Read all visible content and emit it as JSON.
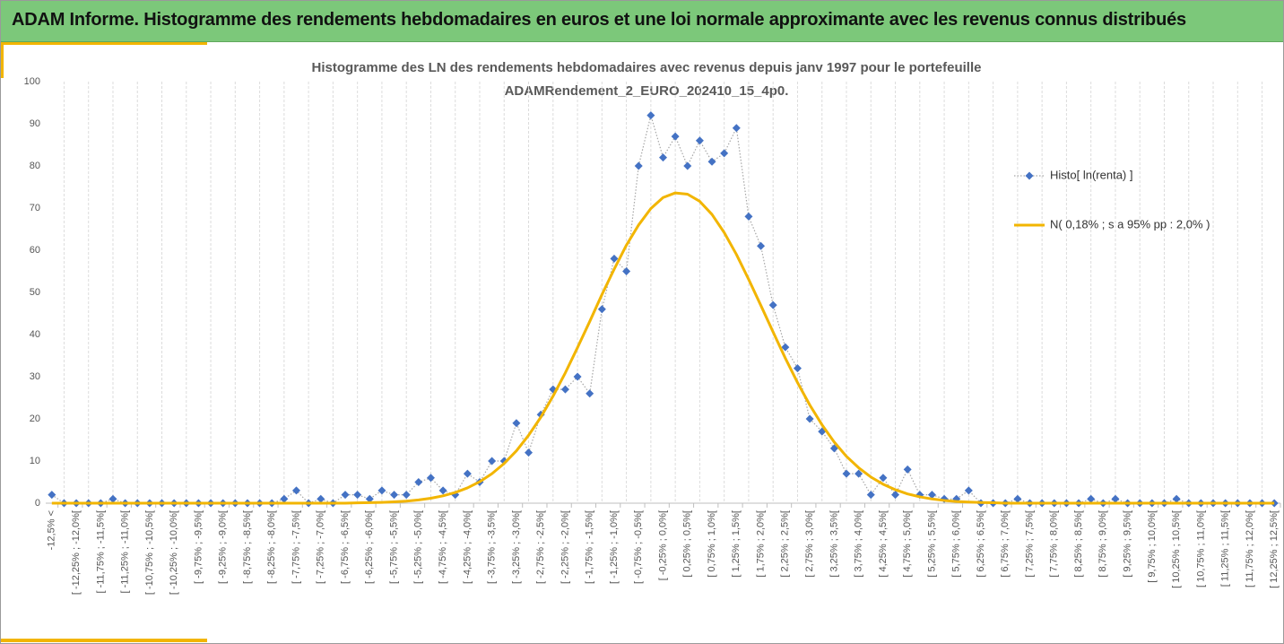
{
  "header": "ADAM Informe. Histogramme des rendements hebdomadaires en euros et une loi normale approximante avec les revenus connus distribués",
  "chart_data": {
    "type": "line",
    "title": [
      "Histogramme des LN des rendements hebdomadaires avec revenus depuis janv 1997 pour le portefeuille",
      "ADAMRendement_2_EURO_202410_15_4p0."
    ],
    "categories": [
      "-12,5% <",
      null,
      "[ -12,25% ; -12,0%[",
      null,
      "[ -11,75% ; -11,5%[",
      null,
      "[ -11,25% ; -11,0%[",
      null,
      "[ -10,75% ; -10,5%[",
      null,
      "[ -10,25% ; -10,0%[",
      null,
      "[ -9,75% ; -9,5%[",
      null,
      "[ -9,25% ; -9,0%[",
      null,
      "[ -8,75% ; -8,5%[",
      null,
      "[ -8,25% ; -8,0%[",
      null,
      "[ -7,75% ; -7,5%[",
      null,
      "[ -7,25% ; -7,0%[",
      null,
      "[ -6,75% ; -6,5%[",
      null,
      "[ -6,25% ; -6,0%[",
      null,
      "[ -5,75% ; -5,5%[",
      null,
      "[ -5,25% ; -5,0%[",
      null,
      "[ -4,75% ; -4,5%[",
      null,
      "[ -4,25% ; -4,0%[",
      null,
      "[ -3,75% ; -3,5%[",
      null,
      "[ -3,25% ; -3,0%[",
      null,
      "[ -2,75% ; -2,5%[",
      null,
      "[ -2,25% ; -2,0%[",
      null,
      "[ -1,75% ; -1,5%[",
      null,
      "[ -1,25% ; -1,0%[",
      null,
      "[ -0,75% ; -0,5%[",
      null,
      "[ -0,25% ; 0,0%[",
      null,
      "[ 0,25% ; 0,5%[",
      null,
      "[ 0,75% ; 1,0%[",
      null,
      "[ 1,25% ; 1,5%[",
      null,
      "[ 1,75% ; 2,0%[",
      null,
      "[ 2,25% ; 2,5%[",
      null,
      "[ 2,75% ; 3,0%[",
      null,
      "[ 3,25% ; 3,5%[",
      null,
      "[ 3,75% ; 4,0%[",
      null,
      "[ 4,25% ; 4,5%[",
      null,
      "[ 4,75% ; 5,0%[",
      null,
      "[ 5,25% ; 5,5%[",
      null,
      "[ 5,75% ; 6,0%[",
      null,
      "[ 6,25% ; 6,5%[",
      null,
      "[ 6,75% ; 7,0%[",
      null,
      "[ 7,25% ; 7,5%[",
      null,
      "[ 7,75% ; 8,0%[",
      null,
      "[ 8,25% ; 8,5%[",
      null,
      "[ 8,75% ; 9,0%[",
      null,
      "[ 9,25% ; 9,5%[",
      null,
      "[ 9,75% ; 10,0%[",
      null,
      "[ 10,25% ; 10,5%[",
      null,
      "[ 10,75% ; 11,0%[",
      null,
      "[ 11,25% ; 11,5%[",
      null,
      "[ 11,75% ; 12,0%[",
      null,
      "[ 12,25% ; 12,5%["
    ],
    "series": [
      {
        "name": "Histo[ ln(renta) ]",
        "color": "#4472c4",
        "line_color": "#a6a6a6",
        "line_style": "dotted",
        "marker": "diamond",
        "values": [
          2,
          0,
          0,
          0,
          0,
          1,
          0,
          0,
          0,
          0,
          0,
          0,
          0,
          0,
          0,
          0,
          0,
          0,
          0,
          1,
          3,
          0,
          1,
          0,
          2,
          2,
          1,
          3,
          2,
          2,
          5,
          6,
          3,
          2,
          7,
          5,
          10,
          10,
          19,
          12,
          21,
          27,
          27,
          30,
          26,
          46,
          58,
          55,
          80,
          92,
          82,
          87,
          80,
          86,
          81,
          83,
          89,
          68,
          61,
          47,
          37,
          32,
          20,
          17,
          13,
          7,
          7,
          2,
          6,
          2,
          8,
          2,
          2,
          1,
          1,
          3,
          0,
          0,
          0,
          1,
          0,
          0,
          0,
          0,
          0,
          1,
          0,
          1,
          0,
          0,
          0,
          0,
          1,
          0,
          0,
          0,
          0,
          0,
          0,
          0,
          0
        ]
      },
      {
        "name": "N( 0,18% ; s a 95% pp : 2,0% )",
        "color": "#f2b500",
        "line_style": "solid",
        "values": [
          0,
          0,
          0,
          0,
          0,
          0,
          0,
          0,
          0,
          0,
          0,
          0,
          0,
          0,
          0,
          0,
          0,
          0,
          0,
          0,
          0,
          0,
          0,
          0,
          0,
          0.07,
          0.12,
          0.19,
          0.31,
          0.49,
          0.77,
          1.17,
          1.74,
          2.54,
          3.63,
          5.09,
          6.99,
          9.42,
          12.4,
          16.1,
          20.4,
          25.4,
          30.9,
          36.9,
          43.1,
          49.5,
          55.5,
          61.2,
          66,
          69.9,
          72.5,
          73.6,
          73.3,
          71.6,
          68.5,
          64.2,
          59,
          53.1,
          46.9,
          40.6,
          34.4,
          28.6,
          23.3,
          18.6,
          14.5,
          11.1,
          8.4,
          6.2,
          4.5,
          3.2,
          2.2,
          1.5,
          1,
          0.65,
          0.4,
          0.26,
          0.16,
          0.1,
          0,
          0,
          0,
          0,
          0,
          0,
          0,
          0,
          0,
          0,
          0,
          0,
          0,
          0,
          0,
          0,
          0,
          0,
          0,
          0,
          0,
          0,
          0
        ]
      }
    ],
    "ylim": [
      0,
      100
    ],
    "yticks": [
      0,
      10,
      20,
      30,
      40,
      50,
      60,
      70,
      80,
      90,
      100
    ],
    "grid": false,
    "category_grid": true,
    "legend": "right"
  }
}
